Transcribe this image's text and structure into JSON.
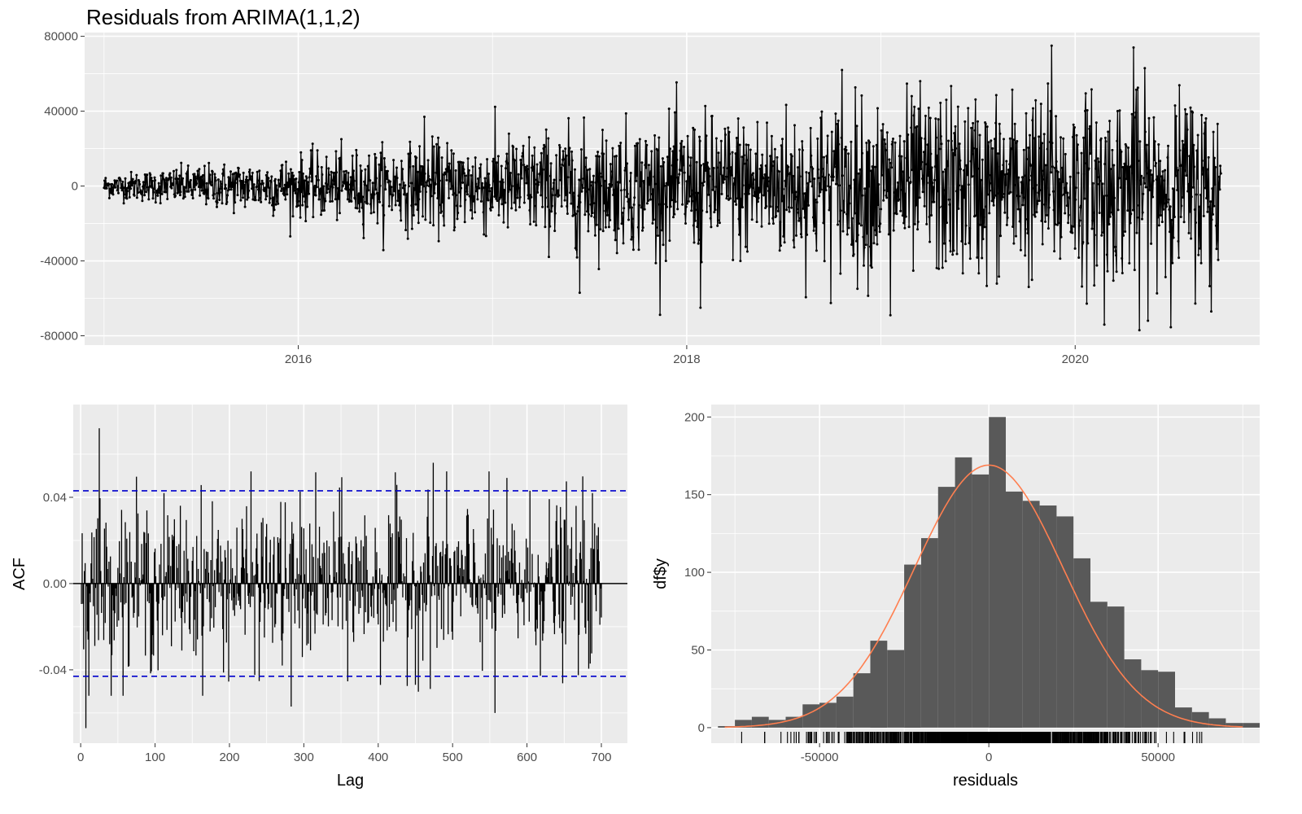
{
  "title": "Residuals from ARIMA(1,1,2)",
  "colors": {
    "panel": "#ebebeb",
    "grid": "#ffffff",
    "series": "#000000",
    "ci": "#0000cc",
    "hist_bar": "#595959",
    "density": "#ff7f50",
    "tick_text": "#4d4d4d"
  },
  "chart_data": [
    {
      "type": "line",
      "name": "residuals-time-series",
      "markers": true,
      "x_range": [
        2014.9,
        2020.95
      ],
      "x_ticks": [
        2016,
        2018,
        2020
      ],
      "x_tick_labels": [
        "2016",
        "2018",
        "2020"
      ],
      "ylim": [
        -85000,
        82000
      ],
      "y_ticks": [
        -80000,
        -40000,
        0,
        40000,
        80000
      ],
      "y_tick_labels": [
        "-80000",
        "-40000",
        "0",
        "40000",
        "80000"
      ],
      "start": 2015.0,
      "end": 2020.75,
      "n_points": 2100,
      "amplitude_sd_start": 3000,
      "amplitude_sd_end": 24000,
      "extremes": [
        {
          "x": 2016.65,
          "y": 37000
        },
        {
          "x": 2017.45,
          "y": 61000
        },
        {
          "x": 2017.45,
          "y": -57000
        },
        {
          "x": 2018.07,
          "y": -65000
        },
        {
          "x": 2018.8,
          "y": 62000
        },
        {
          "x": 2019.05,
          "y": 62000
        },
        {
          "x": 2019.05,
          "y": -69000
        },
        {
          "x": 2019.88,
          "y": 75000
        },
        {
          "x": 2020.15,
          "y": -74000
        },
        {
          "x": 2020.3,
          "y": 74000
        },
        {
          "x": 2020.33,
          "y": -77000
        },
        {
          "x": 2020.7,
          "y": -67000
        }
      ],
      "xlabel": "",
      "ylabel": "",
      "grid": true
    },
    {
      "type": "bar",
      "name": "acf",
      "x_range": [
        -10,
        735
      ],
      "x_ticks": [
        0,
        100,
        200,
        300,
        400,
        500,
        600,
        700
      ],
      "x_tick_labels": [
        "0",
        "100",
        "200",
        "300",
        "400",
        "500",
        "600",
        "700"
      ],
      "ylim": [
        -0.074,
        0.083
      ],
      "y_ticks": [
        -0.04,
        0.0,
        0.04
      ],
      "y_tick_labels": [
        "-0.04",
        "0.00",
        "0.04"
      ],
      "xlabel": "Lag",
      "ylabel": "ACF",
      "ci_limits": [
        0.043,
        -0.043
      ],
      "max_lag": 700,
      "notable_lags": [
        {
          "lag": 7,
          "value": -0.067
        },
        {
          "lag": 25,
          "value": 0.072
        },
        {
          "lag": 283,
          "value": -0.057
        },
        {
          "lag": 474,
          "value": 0.056
        },
        {
          "lag": 557,
          "value": -0.06
        }
      ],
      "grid": true
    },
    {
      "type": "bar",
      "name": "residual-histogram",
      "xlabel": "residuals",
      "ylabel": "df$y",
      "x_range": [
        -82000,
        80000
      ],
      "x_ticks": [
        -50000,
        0,
        50000
      ],
      "x_tick_labels": [
        "-50000",
        "0",
        "50000"
      ],
      "ylim": [
        -10,
        208
      ],
      "y_ticks": [
        0,
        50,
        100,
        150,
        200
      ],
      "y_tick_labels": [
        "0",
        "50",
        "100",
        "150",
        "200"
      ],
      "bin_edges": [
        -80000,
        -75000,
        -70000,
        -65000,
        -60000,
        -55000,
        -50000,
        -45000,
        -40000,
        -35000,
        -30000,
        -25000,
        -20000,
        -15000,
        -10000,
        -5000,
        0,
        5000,
        10000,
        15000,
        20000,
        25000,
        30000,
        35000,
        40000,
        45000,
        50000,
        55000,
        60000,
        65000,
        70000,
        75000,
        80000
      ],
      "counts": [
        1,
        5,
        7,
        5,
        7,
        15,
        16,
        20,
        35,
        56,
        50,
        105,
        122,
        155,
        174,
        163,
        200,
        152,
        146,
        143,
        136,
        109,
        81,
        78,
        44,
        37,
        36,
        13,
        10,
        6,
        3,
        3
      ],
      "density_curve": {
        "mean": 0,
        "sd": 22000,
        "peak": 169
      },
      "rug": true,
      "grid": true
    }
  ]
}
